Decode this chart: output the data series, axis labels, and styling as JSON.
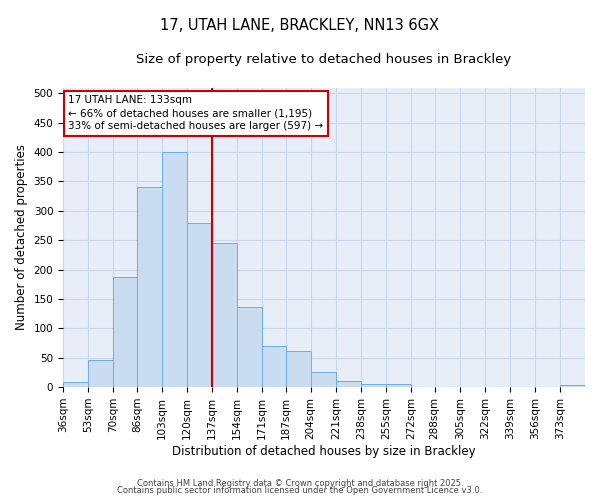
{
  "title_line1": "17, UTAH LANE, BRACKLEY, NN13 6GX",
  "title_line2": "Size of property relative to detached houses in Brackley",
  "xlabel": "Distribution of detached houses by size in Brackley",
  "ylabel": "Number of detached properties",
  "bin_edges": [
    36,
    53,
    70,
    86,
    103,
    120,
    137,
    154,
    171,
    187,
    204,
    221,
    238,
    255,
    272,
    288,
    305,
    322,
    339,
    356,
    373,
    390
  ],
  "bin_labels": [
    "36sqm",
    "53sqm",
    "70sqm",
    "86sqm",
    "103sqm",
    "120sqm",
    "137sqm",
    "154sqm",
    "171sqm",
    "187sqm",
    "204sqm",
    "221sqm",
    "238sqm",
    "255sqm",
    "272sqm",
    "288sqm",
    "305sqm",
    "322sqm",
    "339sqm",
    "356sqm",
    "373sqm"
  ],
  "counts": [
    8,
    46,
    188,
    340,
    400,
    280,
    246,
    136,
    70,
    62,
    25,
    11,
    6,
    5,
    0,
    0,
    0,
    0,
    0,
    0,
    4
  ],
  "bar_facecolor": "#c9dcf0",
  "bar_edgecolor": "#6aaee8",
  "vline_x": 137,
  "vline_color": "#cc0000",
  "annotation_line1": "17 UTAH LANE: 133sqm",
  "annotation_line2": "← 66% of detached houses are smaller (1,195)",
  "annotation_line3": "33% of semi-detached houses are larger (597) →",
  "annotation_box_edgecolor": "#cc0000",
  "ylim": [
    0,
    510
  ],
  "yticks": [
    0,
    50,
    100,
    150,
    200,
    250,
    300,
    350,
    400,
    450,
    500
  ],
  "grid_color": "#c8d8ec",
  "background_color": "#e8eef8",
  "footer_line1": "Contains HM Land Registry data © Crown copyright and database right 2025.",
  "footer_line2": "Contains public sector information licensed under the Open Government Licence v3.0.",
  "title_fontsize": 10.5,
  "subtitle_fontsize": 9.5,
  "axis_label_fontsize": 8.5,
  "tick_fontsize": 7.5,
  "annotation_fontsize": 7.5,
  "footer_fontsize": 6.0
}
